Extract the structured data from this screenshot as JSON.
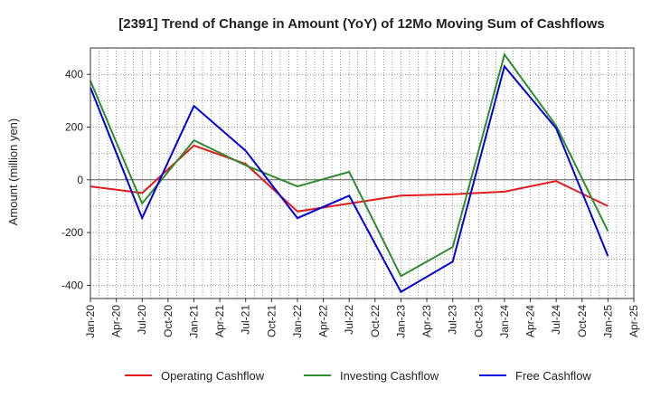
{
  "chart_data": {
    "type": "line",
    "title": "[2391]  Trend of Change in Amount (YoY) of 12Mo Moving Sum of Cashflows",
    "xlabel": "",
    "ylabel": "Amount (million yen)",
    "ylim": [
      -450,
      500
    ],
    "yticks": [
      400,
      200,
      0,
      -200,
      -400
    ],
    "ytick_labels": [
      "400",
      "200",
      "0",
      "-200",
      "-400"
    ],
    "x_tick_labels": [
      "Jan-20",
      "Apr-20",
      "Jul-20",
      "Oct-20",
      "Jan-21",
      "Apr-21",
      "Jul-21",
      "Oct-21",
      "Jan-22",
      "Apr-22",
      "Jul-22",
      "Oct-22",
      "Jan-23",
      "Apr-23",
      "Jul-23",
      "Oct-23",
      "Jan-24",
      "Apr-24",
      "Jul-24",
      "Oct-24",
      "Jan-25",
      "Apr-25"
    ],
    "series": [
      {
        "name": "Operating Cashflow",
        "color": "#e31a1c",
        "points": [
          [
            0,
            -25
          ],
          [
            2,
            -50
          ],
          [
            4,
            130
          ],
          [
            6,
            60
          ],
          [
            8,
            -120
          ],
          [
            10,
            -90
          ],
          [
            12,
            -60
          ],
          [
            14,
            -55
          ],
          [
            16,
            -45
          ],
          [
            18,
            -5
          ],
          [
            20,
            -100
          ]
        ]
      },
      {
        "name": "Investing Cashflow",
        "color": "#2e8b2e",
        "points": [
          [
            0,
            375
          ],
          [
            2,
            -90
          ],
          [
            4,
            150
          ],
          [
            6,
            55
          ],
          [
            8,
            -25
          ],
          [
            10,
            30
          ],
          [
            12,
            -365
          ],
          [
            14,
            -255
          ],
          [
            16,
            475
          ],
          [
            18,
            205
          ],
          [
            20,
            -195
          ]
        ]
      },
      {
        "name": "Free Cashflow",
        "color": "#0000dd",
        "points": [
          [
            0,
            350
          ],
          [
            2,
            -145
          ],
          [
            4,
            280
          ],
          [
            6,
            110
          ],
          [
            8,
            -145
          ],
          [
            10,
            -60
          ],
          [
            12,
            -425
          ],
          [
            14,
            -310
          ],
          [
            16,
            430
          ],
          [
            18,
            195
          ],
          [
            20,
            -290
          ]
        ]
      }
    ],
    "legend_position": "bottom-center",
    "grid": true
  }
}
